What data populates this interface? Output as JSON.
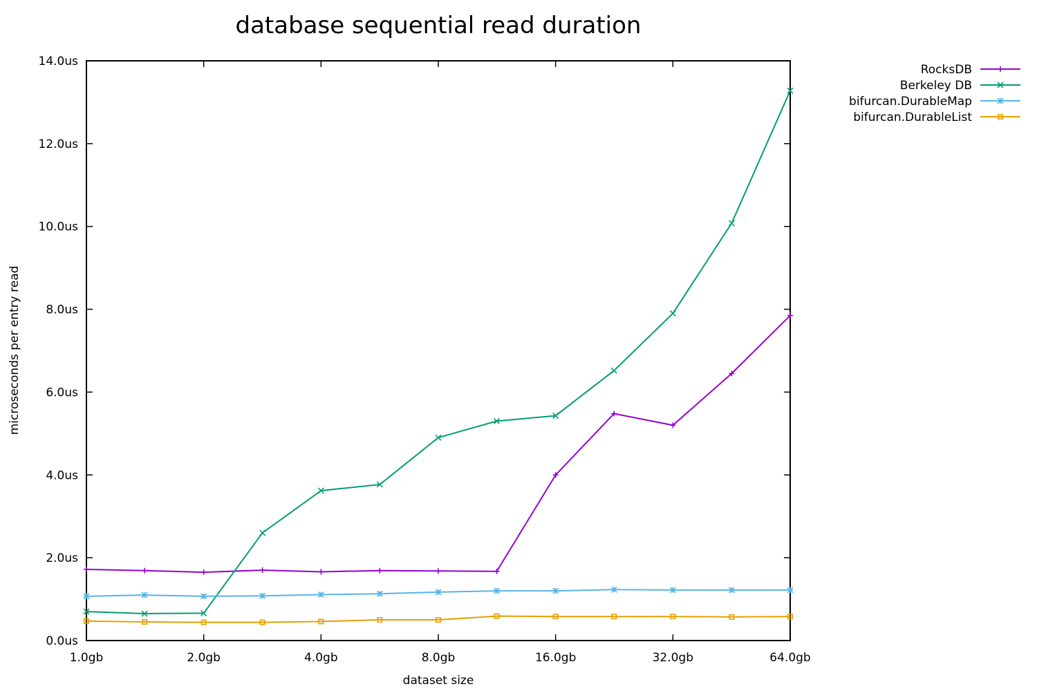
{
  "chart_data": {
    "type": "line",
    "title": "database sequential read duration",
    "xlabel": "dataset size",
    "ylabel": "microseconds per entry read",
    "x_scale": "log2",
    "x": [
      1,
      1.41,
      2,
      2.83,
      4,
      5.66,
      8,
      11.3,
      16,
      22.6,
      32,
      45.3,
      64
    ],
    "xticks": [
      1,
      2,
      4,
      8,
      16,
      32,
      64
    ],
    "xtick_labels": [
      "1.0gb",
      "2.0gb",
      "4.0gb",
      "8.0gb",
      "16.0gb",
      "32.0gb",
      "64.0gb"
    ],
    "xlim": [
      1,
      64
    ],
    "ylim": [
      0,
      14
    ],
    "yticks": [
      0,
      2,
      4,
      6,
      8,
      10,
      12,
      14
    ],
    "ytick_labels": [
      "0.0us",
      "2.0us",
      "4.0us",
      "6.0us",
      "8.0us",
      "10.0us",
      "12.0us",
      "14.0us"
    ],
    "grid": false,
    "legend_position": "top-right outside",
    "series": [
      {
        "name": "RocksDB",
        "color": "#9400d3",
        "marker": "plus",
        "values": [
          1.72,
          1.69,
          1.65,
          1.7,
          1.66,
          1.69,
          1.68,
          1.67,
          4.0,
          5.48,
          5.2,
          6.45,
          7.85
        ]
      },
      {
        "name": "Berkeley DB",
        "color": "#009e73",
        "marker": "cross",
        "values": [
          0.7,
          0.65,
          0.66,
          2.6,
          3.62,
          3.77,
          4.9,
          5.3,
          5.43,
          6.52,
          7.9,
          10.08,
          13.28
        ]
      },
      {
        "name": "bifurcan.DurableMap",
        "color": "#56b4e9",
        "marker": "star",
        "values": [
          1.07,
          1.1,
          1.07,
          1.08,
          1.11,
          1.13,
          1.17,
          1.2,
          1.2,
          1.23,
          1.22,
          1.22,
          1.22
        ]
      },
      {
        "name": "bifurcan.DurableList",
        "color": "#e69f00",
        "marker": "square",
        "values": [
          0.47,
          0.45,
          0.44,
          0.44,
          0.46,
          0.5,
          0.5,
          0.59,
          0.58,
          0.58,
          0.58,
          0.57,
          0.58
        ]
      }
    ]
  }
}
